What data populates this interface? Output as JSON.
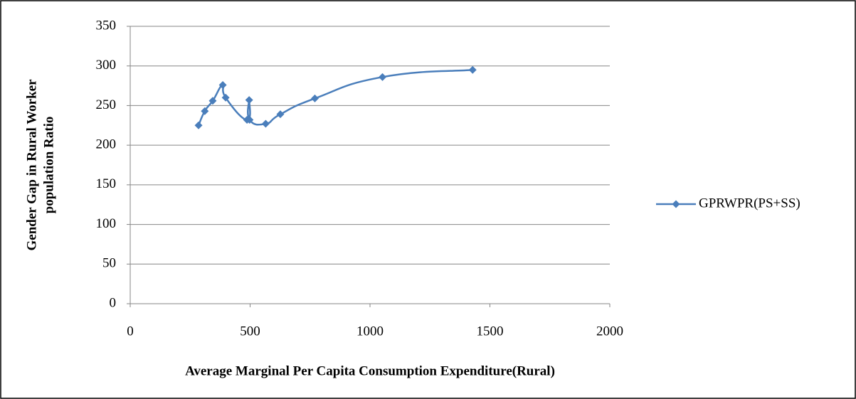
{
  "chart_data": {
    "type": "scatter-line",
    "xlabel": "Average Marginal Per Capita Consumption Expenditure(Rural)",
    "ylabel": [
      "Gender Gap in Rural Worker",
      "population Ratio"
    ],
    "series": [
      {
        "name": "GPRWPR(PS+SS)",
        "color": "#4a7ebb",
        "x": [
          285,
          311,
          344,
          386,
          398,
          487,
          496,
          498,
          565,
          626,
          770,
          1052,
          1428
        ],
        "values": [
          225,
          243,
          256,
          276,
          260,
          232,
          257,
          232,
          227,
          239,
          259,
          286,
          295
        ]
      }
    ],
    "xlim": [
      0,
      2000
    ],
    "xticks": [
      0,
      500,
      1000,
      1500,
      2000
    ],
    "ylim": [
      0,
      350
    ],
    "yticks": [
      0,
      50,
      100,
      150,
      200,
      250,
      300,
      350
    ],
    "grid": true,
    "legend": "right"
  }
}
